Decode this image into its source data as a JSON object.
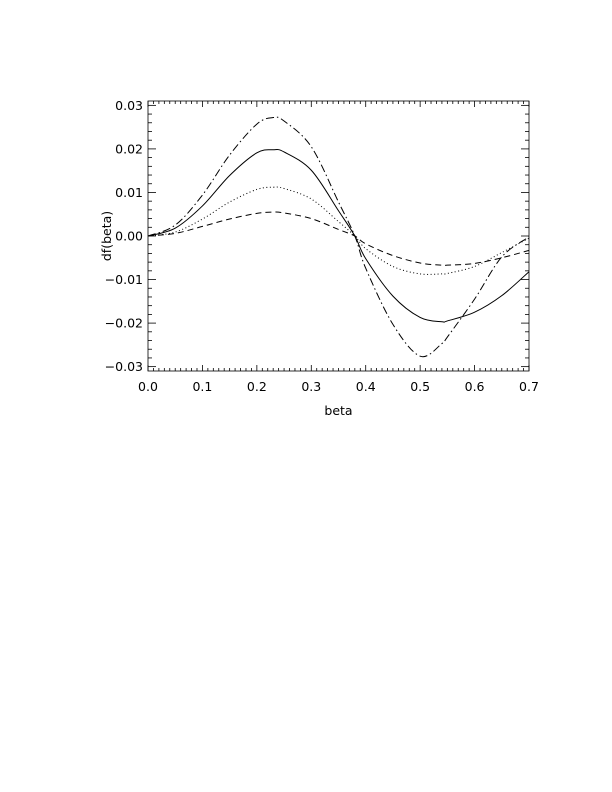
{
  "chart_data": {
    "type": "line",
    "title": "",
    "xlabel": "beta",
    "ylabel": "df(beta)",
    "xlim": [
      0.0,
      0.7
    ],
    "ylim": [
      -0.031,
      0.031
    ],
    "x_ticks": [
      0.0,
      0.1,
      0.2,
      0.3,
      0.4,
      0.5,
      0.6,
      0.7
    ],
    "x_tick_labels": [
      "0.0",
      "0.1",
      "0.2",
      "0.3",
      "0.4",
      "0.5",
      "0.6",
      "0.7"
    ],
    "y_ticks": [
      -0.03,
      -0.02,
      -0.01,
      0.0,
      0.01,
      0.02,
      0.03
    ],
    "y_tick_labels": [
      "−0.03",
      "−0.02",
      "−0.01",
      "0.00",
      "0.01",
      "0.02",
      "0.03"
    ],
    "grid": false,
    "legend": null,
    "x": [
      0.0,
      0.05,
      0.1,
      0.15,
      0.2,
      0.23,
      0.25,
      0.3,
      0.35,
      0.38,
      0.4,
      0.45,
      0.5,
      0.54,
      0.55,
      0.6,
      0.65,
      0.7
    ],
    "series": [
      {
        "name": "solid",
        "style": "solid",
        "values": [
          0.0,
          0.0018,
          0.0069,
          0.0139,
          0.0191,
          0.0198,
          0.0193,
          0.0151,
          0.0058,
          0.0,
          -0.0052,
          -0.0138,
          -0.0187,
          -0.0197,
          -0.0195,
          -0.0175,
          -0.0137,
          -0.0082
        ]
      },
      {
        "name": "dotted",
        "style": "dotted",
        "values": [
          0.0,
          0.0009,
          0.0039,
          0.0078,
          0.0107,
          0.0112,
          0.0109,
          0.0085,
          0.0033,
          0.0,
          -0.0029,
          -0.007,
          -0.0087,
          -0.0087,
          -0.0086,
          -0.007,
          -0.0038,
          -0.0005
        ]
      },
      {
        "name": "dashed",
        "style": "dashed",
        "values": [
          0.0,
          0.0006,
          0.0022,
          0.0039,
          0.0052,
          0.0055,
          0.0053,
          0.004,
          0.0015,
          0.0,
          -0.0018,
          -0.0045,
          -0.0062,
          -0.0067,
          -0.0067,
          -0.0063,
          -0.005,
          -0.0033
        ]
      },
      {
        "name": "dash-dot",
        "style": "dashdot",
        "values": [
          0.0,
          0.0025,
          0.0094,
          0.0186,
          0.0257,
          0.0272,
          0.0264,
          0.0205,
          0.0078,
          0.0,
          -0.0074,
          -0.0203,
          -0.0276,
          -0.0247,
          -0.0232,
          -0.0145,
          -0.0048,
          -0.0002
        ]
      }
    ]
  }
}
